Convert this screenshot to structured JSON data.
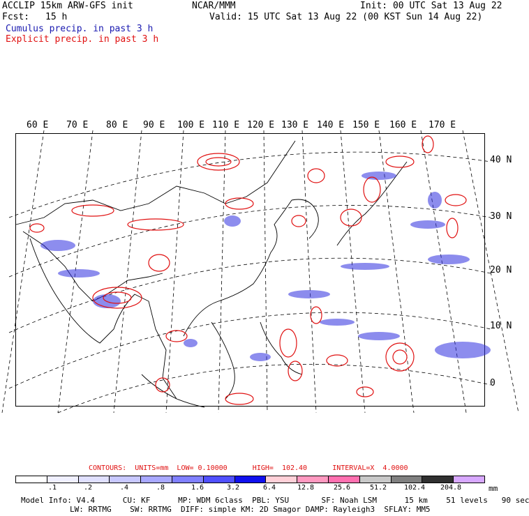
{
  "header": {
    "title": "ACCLIP 15km ARW-GFS init",
    "fcst_label": "Fcst:",
    "fcst_value": "15 h",
    "source": "NCAR/MMM",
    "init": "Init: 00 UTC Sat 13 Aug 22",
    "valid": "Valid: 15 UTC Sat 13 Aug 22 (00 KST Sun 14 Aug 22)",
    "legend_cumulus": "Cumulus precip. in past 3 h",
    "legend_explicit": "Explicit precip. in past 3 h"
  },
  "colors": {
    "cumulus": "#1a1ab0",
    "explicit": "#e01010"
  },
  "map": {
    "lon_labels": [
      "60 E",
      "70 E",
      "80 E",
      "90 E",
      "100 E",
      "110 E",
      "120 E",
      "130 E",
      "140 E",
      "150 E",
      "160 E",
      "170 E"
    ],
    "lat_labels": [
      "40 N",
      "30 N",
      "20 N",
      "10 N",
      "0"
    ]
  },
  "contours_line": "CONTOURS:  UNITS=mm  LOW= 0.10000      HIGH=  102.40      INTERVAL=X  4.0000",
  "colorbar": {
    "colors": [
      "#ffffff",
      "#f0f0ff",
      "#e0e0ff",
      "#c8c8ff",
      "#a8a8ff",
      "#8080ff",
      "#5050ff",
      "#1010ee",
      "#ffd0d8",
      "#ff99c0",
      "#ff70b0",
      "#c8c8c8",
      "#808080",
      "#303030",
      "#d8a8ff"
    ],
    "labels": [
      ".1",
      ".2",
      ".4",
      ".8",
      "1.6",
      "3.2",
      "6.4",
      "12.8",
      "25.6",
      "51.2",
      "102.4",
      "204.8"
    ],
    "unit": "mm"
  },
  "model_info": {
    "line1": "Model Info: V4.4      CU: KF      MP: WDM 6class  PBL: YSU       SF: Noah LSM      15 km    51 levels   90 sec",
    "line2": "LW: RRTMG    SW: RRTMG  DIFF: simple KM: 2D Smagor DAMP: Rayleigh3  SFLAY: MM5"
  }
}
